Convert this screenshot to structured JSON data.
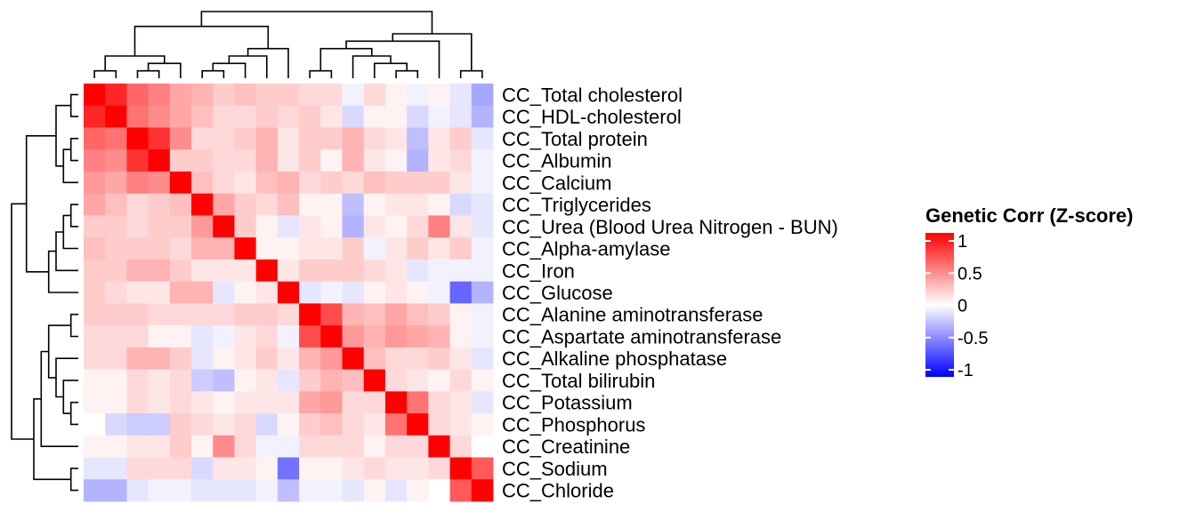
{
  "chart_data": {
    "type": "heatmap",
    "title": "",
    "legend": {
      "title": "Genetic Corr (Z-score)",
      "ticks": [
        {
          "value": 1,
          "label": "1"
        },
        {
          "value": 0.5,
          "label": "0.5"
        },
        {
          "value": 0,
          "label": "0"
        },
        {
          "value": -0.5,
          "label": "-0.5"
        },
        {
          "value": -1,
          "label": "-1"
        }
      ],
      "range": [
        -1,
        1
      ],
      "colors": {
        "high": "#ff0000",
        "mid": "#ffffff",
        "low": "#0000ff"
      },
      "placement": "right"
    },
    "rows": [
      "CC_Total cholesterol",
      "CC_HDL-cholesterol",
      "CC_Total protein",
      "CC_Albumin",
      "CC_Calcium",
      "CC_Triglycerides",
      "CC_Urea (Blood Urea Nitrogen - BUN)",
      "CC_Alpha-amylase",
      "CC_Iron",
      "CC_Glucose",
      "CC_Alanine aminotransferase",
      "CC_Aspartate aminotransferase",
      "CC_Alkaline phosphatase",
      "CC_Total bilirubin",
      "CC_Potassium",
      "CC_Phosphorus",
      "CC_Creatinine",
      "CC_Sodium",
      "CC_Chloride"
    ],
    "values": [
      [
        1,
        0.85,
        0.6,
        0.5,
        0.35,
        0.3,
        0.2,
        0.25,
        0.2,
        0.2,
        0.15,
        0.15,
        -0.05,
        0.15,
        0.05,
        -0.05,
        0.05,
        -0.1,
        -0.35
      ],
      [
        0.85,
        1,
        0.55,
        0.45,
        0.35,
        0.25,
        0.15,
        0.15,
        0.2,
        0.15,
        0.2,
        0.1,
        -0.15,
        0.05,
        0.05,
        -0.15,
        -0.05,
        -0.1,
        -0.3
      ],
      [
        0.6,
        0.55,
        1,
        0.8,
        0.45,
        0.15,
        0.15,
        0.2,
        0.3,
        0.1,
        0.2,
        0.2,
        0.3,
        0.15,
        0.1,
        -0.25,
        0.1,
        0.2,
        -0.1
      ],
      [
        0.5,
        0.45,
        0.8,
        1,
        0.2,
        0.2,
        0.15,
        0.15,
        0.3,
        0.1,
        0.2,
        0.05,
        0.3,
        0.1,
        0.05,
        -0.3,
        0.1,
        0.15,
        -0.05
      ],
      [
        0.4,
        0.35,
        0.5,
        0.45,
        1,
        0.25,
        0.15,
        0.1,
        0.25,
        0.3,
        0.15,
        0.2,
        0.15,
        0.25,
        0.2,
        0.2,
        0.2,
        0.1,
        -0.05
      ],
      [
        0.35,
        0.25,
        0.15,
        0.2,
        0.25,
        1,
        0.35,
        0.2,
        0.15,
        0.25,
        0.05,
        0.05,
        -0.25,
        0.05,
        0.1,
        0.1,
        0.05,
        -0.15,
        -0.1
      ],
      [
        0.2,
        0.2,
        0.15,
        0.2,
        0.2,
        0.4,
        1,
        0.2,
        0.05,
        -0.1,
        0.1,
        0.05,
        -0.3,
        0.1,
        0.05,
        0.15,
        0.5,
        0.1,
        -0.1
      ],
      [
        0.25,
        0.2,
        0.2,
        0.2,
        0.15,
        0.3,
        0.3,
        1,
        0.05,
        0.05,
        0.1,
        0.1,
        0.2,
        -0.05,
        0.1,
        0.2,
        0.1,
        0.2,
        -0.05
      ],
      [
        0.2,
        0.2,
        0.3,
        0.3,
        0.2,
        0.1,
        0.1,
        0.1,
        1,
        0.1,
        0.2,
        0.2,
        0.2,
        0.15,
        0.1,
        -0.1,
        -0.05,
        -0.05,
        -0.05
      ],
      [
        0.2,
        0.15,
        0.1,
        0.1,
        0.3,
        0.3,
        -0.1,
        0.05,
        0.1,
        1,
        -0.1,
        -0.05,
        -0.1,
        0.05,
        0.1,
        0.05,
        -0.05,
        -0.6,
        -0.3
      ],
      [
        0.2,
        0.2,
        0.2,
        0.15,
        0.15,
        0.15,
        0.15,
        0.2,
        0.2,
        0.15,
        1,
        0.7,
        0.3,
        0.25,
        0.35,
        0.25,
        0.2,
        0.05,
        -0.05
      ],
      [
        0.15,
        0.15,
        0.15,
        0.05,
        0.05,
        -0.1,
        -0.05,
        0.1,
        0.15,
        -0.05,
        0.7,
        1,
        0.4,
        0.3,
        0.4,
        0.35,
        0.3,
        0.05,
        -0.05
      ],
      [
        0.15,
        0.15,
        0.3,
        0.3,
        0.2,
        -0.1,
        0.05,
        0.1,
        0.2,
        0.1,
        0.3,
        0.4,
        1,
        0.25,
        0.15,
        0.15,
        0.2,
        0.1,
        -0.1
      ],
      [
        0.05,
        0.05,
        0.15,
        0.1,
        0.15,
        -0.2,
        -0.25,
        0.05,
        0.1,
        -0.1,
        0.2,
        0.3,
        0.25,
        1,
        0.15,
        0.1,
        0.05,
        0.15,
        0.05
      ],
      [
        0.05,
        0.05,
        0.15,
        0.1,
        0.15,
        0.1,
        0.05,
        0.1,
        0.1,
        0.1,
        0.35,
        0.4,
        0.15,
        0.15,
        1,
        0.55,
        0.15,
        0.1,
        -0.1
      ],
      [
        0,
        -0.15,
        -0.2,
        -0.2,
        0.2,
        0.15,
        0.1,
        0.15,
        -0.15,
        0.05,
        0.2,
        0.25,
        0.15,
        0.1,
        0.55,
        1,
        0.15,
        0.1,
        0.05
      ],
      [
        0.05,
        0.05,
        0.1,
        0.1,
        0.2,
        0.05,
        0.45,
        0.15,
        -0.05,
        -0.05,
        0.15,
        0.15,
        0.15,
        0.05,
        0.15,
        0.15,
        1,
        0.15,
        0
      ],
      [
        -0.1,
        -0.1,
        0.15,
        0.15,
        0.15,
        -0.15,
        0.1,
        0.1,
        0.05,
        -0.55,
        0.05,
        0.05,
        0.1,
        0.15,
        0.1,
        0.1,
        0.15,
        1,
        0.65
      ],
      [
        -0.3,
        -0.3,
        -0.1,
        -0.05,
        -0.05,
        -0.1,
        -0.1,
        -0.1,
        -0.05,
        -0.25,
        -0.05,
        -0.05,
        -0.1,
        0.05,
        -0.1,
        0.05,
        0,
        0.65,
        1
      ]
    ],
    "dendrogram": {
      "leaves": 19,
      "merges": [
        [
          1,
          2,
          1
        ],
        [
          3,
          4,
          1
        ],
        [
          6,
          7,
          1
        ],
        [
          11,
          12,
          1
        ],
        [
          15,
          16,
          1
        ],
        [
          18,
          19,
          1
        ],
        [
          -2,
          5,
          2
        ],
        [
          -1,
          -7,
          3
        ],
        [
          -3,
          8,
          2
        ],
        [
          -9,
          9,
          3
        ],
        [
          -10,
          10,
          4
        ],
        [
          14,
          -5,
          2
        ],
        [
          13,
          -12,
          3
        ],
        [
          -4,
          -13,
          4
        ],
        [
          -14,
          17,
          5
        ],
        [
          -15,
          -6,
          6
        ],
        [
          -8,
          -11,
          7
        ],
        [
          -16,
          -17,
          9
        ]
      ]
    }
  }
}
